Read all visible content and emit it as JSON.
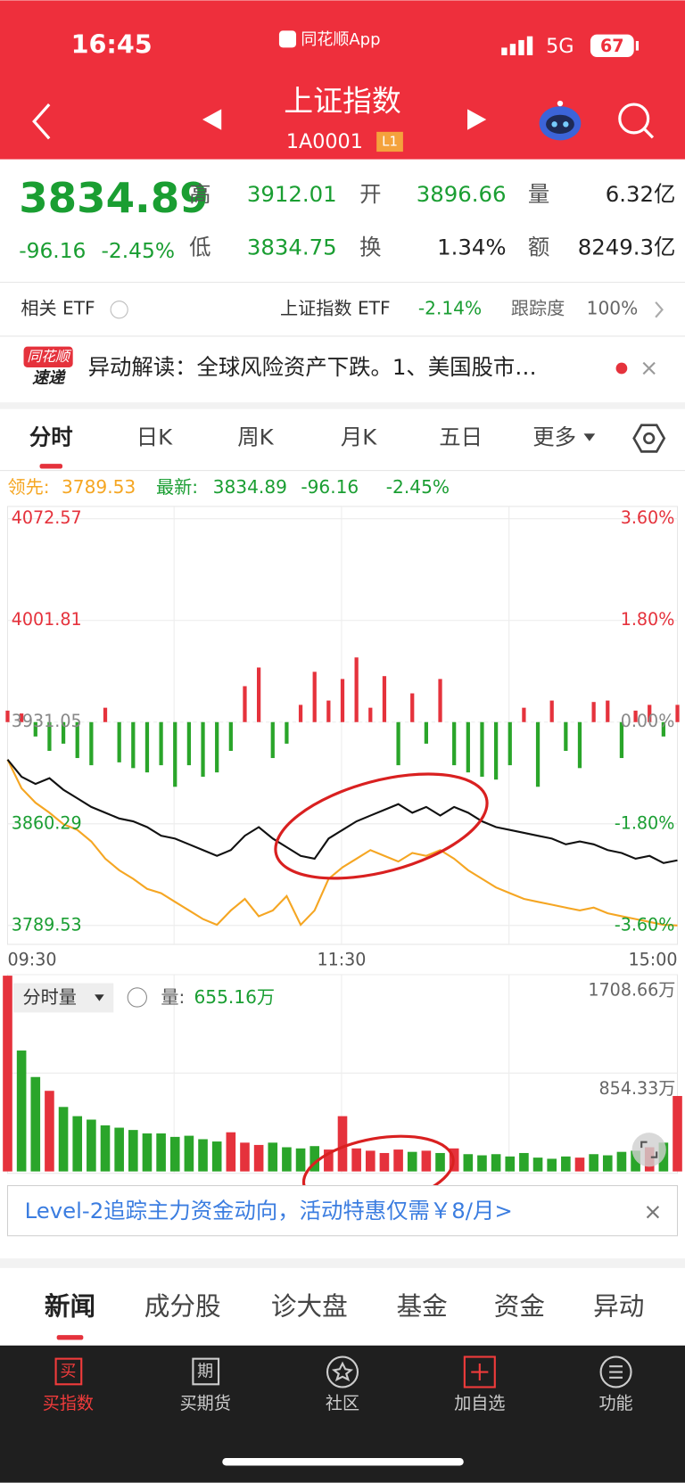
{
  "status": {
    "time": "16:45",
    "app": "同花顺App",
    "network": "5G",
    "battery": "67"
  },
  "header": {
    "title": "上证指数",
    "code": "1A0001",
    "badge": "L1"
  },
  "quote": {
    "price": "3834.89",
    "change": "-96.16",
    "percent": "-2.45%",
    "fields": [
      {
        "label": "高",
        "value": "3912.01"
      },
      {
        "label": "开",
        "value": "3896.66"
      },
      {
        "label": "量",
        "value": "6.32亿"
      },
      {
        "label": "低",
        "value": "3834.75"
      },
      {
        "label": "换",
        "value": "1.34%"
      },
      {
        "label": "额",
        "value": "8249.3亿"
      }
    ]
  },
  "etf": {
    "label": "相关 ETF",
    "name": "上证指数 ETF",
    "change": "-2.14%",
    "track_label": "跟踪度",
    "track": "100%"
  },
  "news": {
    "badge_top": "同花顺",
    "badge_bottom": "速递",
    "text": "异动解读：全球风险资产下跌。1、美国股市…"
  },
  "tabs": [
    "分时",
    "日K",
    "周K",
    "月K",
    "五日",
    "更多"
  ],
  "chart_data": [
    {
      "type": "line",
      "legend": {
        "leader_label": "领先:",
        "leader": "3789.53",
        "latest_label": "最新:",
        "latest": "3834.89",
        "change": "-96.16",
        "percent": "-2.45%"
      },
      "ylim": [
        3789.53,
        4072.57
      ],
      "yticks": [
        4072.57,
        4001.81,
        3931.05,
        3860.29,
        3789.53
      ],
      "y2lim": [
        -3.6,
        3.6
      ],
      "y2ticks": [
        {
          "value": 3.6,
          "label": "3.60%"
        },
        {
          "value": 1.8,
          "label": "1.80%"
        },
        {
          "value": 0,
          "label": "0.00%"
        },
        {
          "value": -1.8,
          "label": "-1.80%"
        },
        {
          "value": -3.6,
          "label": "-3.60%"
        }
      ],
      "xticks": [
        "09:30",
        "11:30",
        "15:00"
      ],
      "grid": true,
      "series": [
        {
          "color": "#111111",
          "values": [
            3905,
            3893,
            3888,
            3892,
            3884,
            3878,
            3872,
            3868,
            3864,
            3862,
            3858,
            3852,
            3850,
            3846,
            3842,
            3838,
            3842,
            3852,
            3858,
            3850,
            3844,
            3838,
            3836,
            3850,
            3856,
            3862,
            3866,
            3870,
            3874,
            3868,
            3872,
            3866,
            3872,
            3868,
            3862,
            3858,
            3856,
            3854,
            3852,
            3850,
            3846,
            3848,
            3846,
            3842,
            3840,
            3836,
            3838,
            3833,
            3834.89
          ]
        },
        {
          "color": "#f5a623",
          "values": [
            3905,
            3885,
            3875,
            3868,
            3860,
            3856,
            3848,
            3836,
            3828,
            3822,
            3815,
            3812,
            3806,
            3800,
            3794,
            3790,
            3800,
            3808,
            3796,
            3800,
            3810,
            3790,
            3800,
            3822,
            3830,
            3836,
            3842,
            3838,
            3834,
            3840,
            3838,
            3842,
            3836,
            3828,
            3822,
            3816,
            3812,
            3808,
            3806,
            3804,
            3802,
            3800,
            3802,
            3798,
            3796,
            3794,
            3792,
            3790,
            3789.53
          ]
        }
      ],
      "flow": {
        "up_color": "#e5323c",
        "down_color": "#2aa52a",
        "values": [
          8,
          6,
          -10,
          -20,
          -15,
          -25,
          -30,
          10,
          -28,
          -32,
          -35,
          -30,
          -45,
          -30,
          -38,
          -35,
          -20,
          25,
          38,
          -25,
          -15,
          12,
          35,
          15,
          30,
          45,
          10,
          32,
          -30,
          20,
          -15,
          30,
          -30,
          -35,
          -38,
          -40,
          -30,
          10,
          -45,
          15,
          -20,
          -32,
          14,
          15,
          -25,
          8,
          12,
          -10,
          12
        ]
      }
    },
    {
      "type": "bar",
      "title": "分时量",
      "readout_label": "量:",
      "readout": "655.16万",
      "ylim": [
        0,
        1708.66
      ],
      "yticks": [
        {
          "value": 1708.66,
          "label": "1708.66万"
        },
        {
          "value": 854.33,
          "label": "854.33万"
        }
      ],
      "up_color": "#e5323c",
      "down_color": "#2aa52a",
      "values": [
        1700,
        1050,
        820,
        700,
        560,
        480,
        450,
        400,
        380,
        360,
        330,
        330,
        300,
        310,
        280,
        260,
        340,
        250,
        230,
        250,
        210,
        200,
        220,
        190,
        480,
        200,
        180,
        160,
        190,
        170,
        180,
        160,
        200,
        150,
        140,
        150,
        130,
        160,
        120,
        110,
        130,
        120,
        150,
        140,
        170,
        180,
        210,
        250,
        655.16
      ]
    }
  ],
  "promo": {
    "text": "Level-2追踪主力资金动向，活动特惠仅需￥8/月>"
  },
  "sections": [
    "新闻",
    "成分股",
    "诊大盘",
    "基金",
    "资金",
    "异动"
  ],
  "nav": {
    "icons": [
      "买",
      "期"
    ],
    "labels": [
      "买指数",
      "买期货",
      "社区",
      "加自选",
      "功能"
    ]
  }
}
